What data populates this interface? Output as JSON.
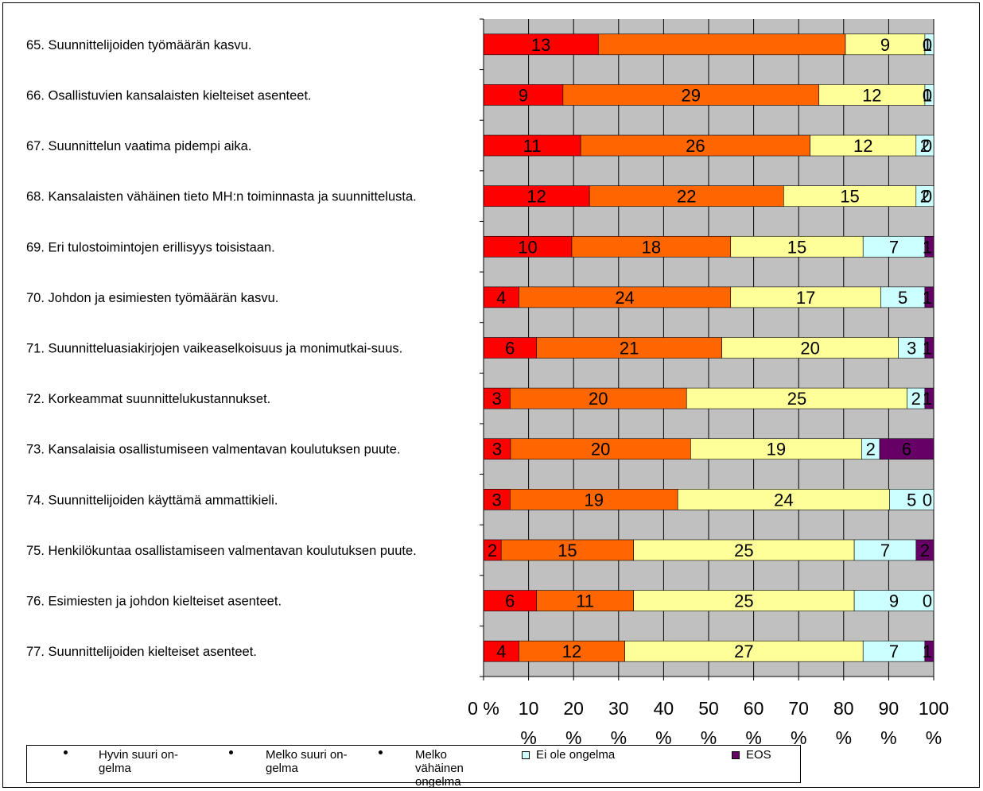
{
  "chart_data": {
    "type": "bar",
    "orientation": "horizontal",
    "stacked": "percent",
    "categories": [
      "65. Suunnittelijoiden työmäärän kasvu.",
      "66. Osallistuvien kansalaisten kielteiset asenteet.",
      "67. Suunnittelun vaatima pidempi aika.",
      "68. Kansalaisten vähäinen tieto MH:n toiminnasta ja suunnittelusta.",
      "69. Eri tulostoimintojen erillisyys toisistaan.",
      "70. Johdon ja esimiesten työmäärän kasvu.",
      "71. Suunnitteluasiakirjojen vaikeaselkoisuus ja monimutkai-suus.",
      "72. Korkeammat suunnittelukustannukset.",
      "73. Kansalaisia osallistumiseen valmentavan koulutuksen puute.",
      "74. Suunnittelijoiden käyttämä ammattikieli.",
      "75. Henkilökuntaa osallistamiseen valmentavan koulutuksen puute.",
      "76. Esimiesten ja johdon kielteiset asenteet.",
      "77. Suunnittelijoiden kielteiset asenteet."
    ],
    "series": [
      {
        "name": "Hyvin suuri on-gelma",
        "color": "#ff0000",
        "values": [
          13,
          9,
          11,
          12,
          10,
          4,
          6,
          3,
          3,
          3,
          2,
          6,
          4
        ]
      },
      {
        "name": "Melko suuri on-gelma",
        "color": "#ff6600",
        "values": [
          28,
          29,
          26,
          22,
          18,
          24,
          21,
          20,
          20,
          19,
          15,
          11,
          12
        ]
      },
      {
        "name": "Melko vähäinen ongelma",
        "color": "#ffff99",
        "values": [
          9,
          12,
          12,
          15,
          15,
          17,
          20,
          25,
          19,
          24,
          25,
          25,
          27
        ]
      },
      {
        "name": "Ei ole ongelma",
        "color": "#ccffff",
        "values": [
          1,
          1,
          2,
          2,
          7,
          5,
          3,
          2,
          2,
          5,
          7,
          9,
          7
        ]
      },
      {
        "name": "EOS",
        "color": "#660066",
        "values": [
          0,
          0,
          0,
          0,
          1,
          1,
          1,
          1,
          6,
          0,
          2,
          0,
          1
        ]
      }
    ],
    "bar_labels": [
      [
        "13",
        "",
        "9",
        "1",
        "0"
      ],
      [
        "9",
        "29",
        "12",
        "1",
        "0"
      ],
      [
        "11",
        "26",
        "12",
        "2",
        "0"
      ],
      [
        "12",
        "22",
        "15",
        "2",
        "0"
      ],
      [
        "10",
        "18",
        "15",
        "7",
        "1"
      ],
      [
        "4",
        "24",
        "17",
        "5",
        "1"
      ],
      [
        "6",
        "21",
        "20",
        "3",
        "1"
      ],
      [
        "3",
        "20",
        "25",
        "2",
        "1"
      ],
      [
        "3",
        "20",
        "19",
        "2",
        "6"
      ],
      [
        "3",
        "19",
        "24",
        "5",
        "0"
      ],
      [
        "2",
        "15",
        "25",
        "7",
        "2"
      ],
      [
        "6",
        "11",
        "25",
        "9",
        "0"
      ],
      [
        "4",
        "12",
        "27",
        "7",
        "1"
      ]
    ],
    "x_ticks": [
      "0 %",
      "10 %",
      "20 %",
      "30 %",
      "40 %",
      "50 %",
      "60 %",
      "70 %",
      "80 %",
      "90 %",
      "100 %"
    ],
    "xlim": [
      0,
      100
    ],
    "grid": true,
    "plot_background": "#c0c0c0",
    "legend_position": "bottom"
  },
  "legend": {
    "items": [
      {
        "label": "Hyvin suuri on-gelma",
        "marker": "bullet"
      },
      {
        "label": "Melko suuri on-gelma",
        "marker": "bullet"
      },
      {
        "label": "Melko vähäinen ongelma",
        "marker": "bullet"
      },
      {
        "label": "Ei ole ongelma",
        "marker": "box",
        "color": "#ccffff"
      },
      {
        "label": "EOS",
        "marker": "box",
        "color": "#660066"
      }
    ]
  }
}
